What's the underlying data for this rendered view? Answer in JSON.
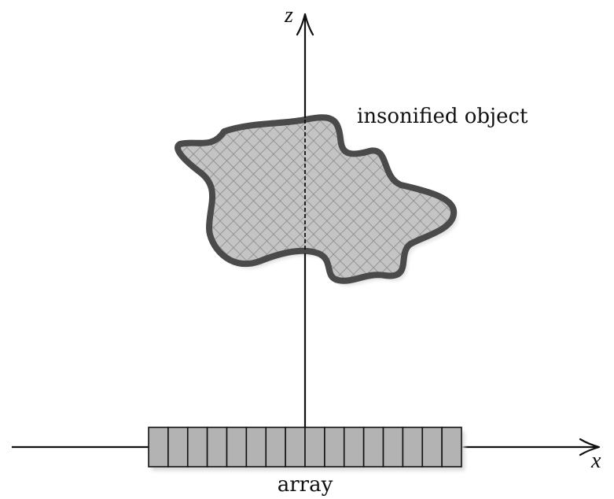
{
  "labels": {
    "z_axis": "z",
    "x_axis": "x",
    "object": "insonified object",
    "array": "array"
  },
  "array": {
    "element_count": 16
  },
  "colors": {
    "ink": "#111111",
    "object_outline": "#4a4a4a",
    "object_fill": "#c4c4c4",
    "hatch": "#8a8a8a",
    "array_fill": "#b3b3b3",
    "shadow": "#d9d9d9"
  }
}
